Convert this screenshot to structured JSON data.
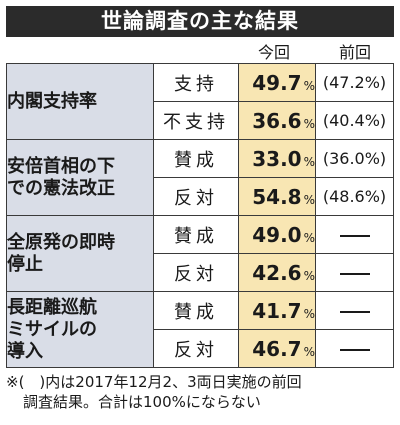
{
  "title": "世論調査の主な結果",
  "headers": {
    "current": "今回",
    "previous": "前回"
  },
  "rows": [
    {
      "question": "内閣支持率",
      "option": "支持",
      "current": "49.7",
      "previous": "(47.2%)"
    },
    {
      "option": "不支持",
      "current": "36.6",
      "previous": "(40.4%)"
    },
    {
      "question": "安倍首相の下での憲法改正",
      "option": "賛成",
      "current": "33.0",
      "previous": "(36.0%)"
    },
    {
      "option": "反対",
      "current": "54.8",
      "previous": "(48.6%)"
    },
    {
      "question": "全原発の即時停止",
      "option": "賛成",
      "current": "49.0",
      "previous": "―"
    },
    {
      "option": "反対",
      "current": "42.6",
      "previous": "―"
    },
    {
      "question": "長距離巡航ミサイルの導入",
      "option": "賛成",
      "current": "41.7",
      "previous": "―"
    },
    {
      "option": "反対",
      "current": "46.7",
      "previous": "―"
    }
  ],
  "q_lines": [
    [
      "内閣支持率"
    ],
    [
      "安倍首相の下",
      "での憲法改正"
    ],
    [
      "全原発の即時",
      "停止"
    ],
    [
      "長距離巡航",
      "ミサイルの",
      "導入"
    ]
  ],
  "pct_unit": "%",
  "note": {
    "line1": "※(　)内は2017年12月2、3両日実施の前回",
    "line2": "調査結果。合計は100%にならない"
  }
}
